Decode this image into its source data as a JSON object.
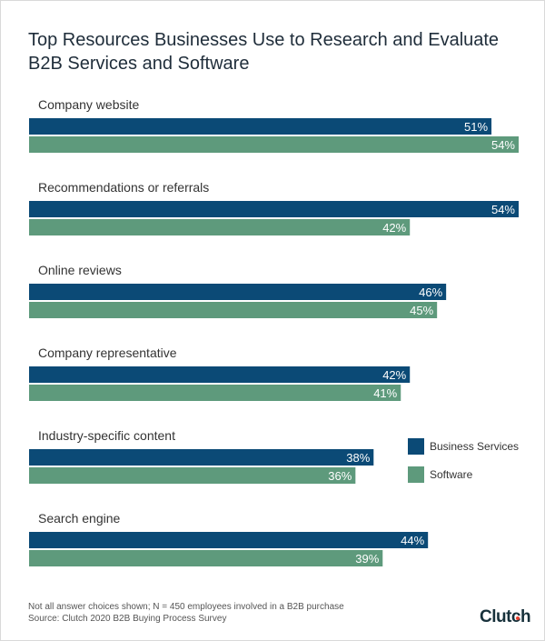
{
  "chart_data": {
    "type": "bar",
    "orientation": "horizontal",
    "title": "Top Resources Businesses Use to Research and Evaluate B2B Services and Software",
    "categories": [
      "Company website",
      "Recommendations or referrals",
      "Online reviews",
      "Company representative",
      "Industry-specific content",
      "Search engine"
    ],
    "series": [
      {
        "name": "Business Services",
        "color": "#0b4a76",
        "values": [
          51,
          54,
          46,
          42,
          38,
          44
        ]
      },
      {
        "name": "Software",
        "color": "#5e9a7c",
        "values": [
          54,
          42,
          45,
          41,
          36,
          39
        ]
      }
    ],
    "value_suffix": "%",
    "xlim": [
      0,
      54
    ],
    "grid": false,
    "legend": "right"
  },
  "footnotes": [
    "Not all answer choices shown; N = 450 employees involved in a B2B purchase",
    "Source: Clutch 2020 B2B Buying Process Survey"
  ],
  "logo": "Clutch"
}
